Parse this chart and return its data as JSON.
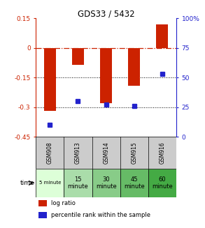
{
  "title": "GDS33 / 5432",
  "categories": [
    "GSM908",
    "GSM913",
    "GSM914",
    "GSM915",
    "GSM916"
  ],
  "time_labels": [
    "5 minute",
    "15\nminute",
    "30\nminute",
    "45\nminute",
    "60\nminute"
  ],
  "log_ratio": [
    -0.32,
    -0.085,
    -0.28,
    -0.19,
    0.12
  ],
  "percentile_rank": [
    10,
    30,
    27,
    26,
    53
  ],
  "bar_color": "#cc2200",
  "dot_color": "#2222cc",
  "ylim_left": [
    -0.45,
    0.15
  ],
  "ylim_right": [
    0,
    100
  ],
  "yticks_left": [
    0.15,
    0.0,
    -0.15,
    -0.3,
    -0.45
  ],
  "yticks_right": [
    100,
    75,
    50,
    25,
    0
  ],
  "gsm_row_color": "#cccccc",
  "time_row_colors": [
    "#ddffd8",
    "#aaddaa",
    "#88cc88",
    "#66bb66",
    "#44aa44"
  ],
  "legend_labels": [
    "log ratio",
    "percentile rank within the sample"
  ]
}
